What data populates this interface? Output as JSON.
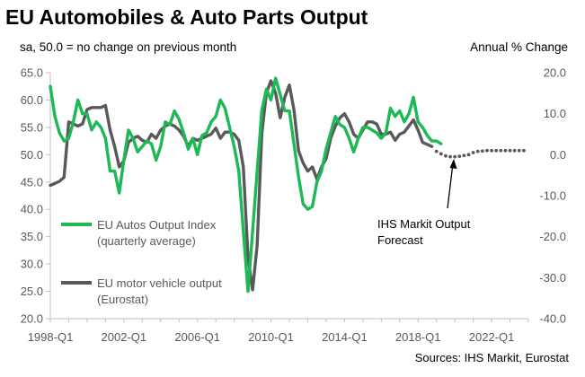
{
  "chart_data": {
    "type": "line",
    "title": "EU Automobiles & Auto Parts Output",
    "left_axis_label": "sa, 50.0 = no change on previous month",
    "right_axis_label": "Annual % Change",
    "source": "Sources: IHS Markit, Eurostat",
    "annotation": [
      "IHS Markit Output",
      "Forecast"
    ],
    "x_ticks": [
      "1998-Q1",
      "2002-Q1",
      "2006-Q1",
      "2010-Q1",
      "2014-Q1",
      "2018-Q1",
      "2022-Q1"
    ],
    "y_left": {
      "min": 20,
      "max": 65,
      "ticks": [
        "20.0",
        "25.0",
        "30.0",
        "35.0",
        "40.0",
        "45.0",
        "50.0",
        "55.0",
        "60.0",
        "65.0"
      ]
    },
    "y_right": {
      "min": -40,
      "max": 20,
      "ticks": [
        "-40.0",
        "-30.0",
        "-20.0",
        "-10.0",
        "0.0",
        "10.0",
        "20.0"
      ]
    },
    "grid": false,
    "legend_position": "bottom-left",
    "series": [
      {
        "name": "EU Autos Output Index\n(quarterly average)",
        "legend_lines": [
          "EU Autos Output Index",
          "(quarterly average)"
        ],
        "axis": "left",
        "color": "#1db954",
        "x": [
          1998.0,
          1998.25,
          1998.5,
          1998.75,
          1999.0,
          1999.25,
          1999.5,
          1999.75,
          2000.0,
          2000.25,
          2000.5,
          2000.75,
          2001.0,
          2001.25,
          2001.5,
          2001.75,
          2002.0,
          2002.25,
          2002.5,
          2002.75,
          2003.0,
          2003.25,
          2003.5,
          2003.75,
          2004.0,
          2004.25,
          2004.5,
          2004.75,
          2005.0,
          2005.25,
          2005.5,
          2005.75,
          2006.0,
          2006.25,
          2006.5,
          2006.75,
          2007.0,
          2007.25,
          2007.5,
          2007.75,
          2008.0,
          2008.25,
          2008.5,
          2008.75,
          2009.0,
          2009.25,
          2009.5,
          2009.75,
          2010.0,
          2010.25,
          2010.5,
          2010.75,
          2011.0,
          2011.25,
          2011.5,
          2011.75,
          2012.0,
          2012.25,
          2012.5,
          2012.75,
          2013.0,
          2013.25,
          2013.5,
          2013.75,
          2014.0,
          2014.25,
          2014.5,
          2014.75,
          2015.0,
          2015.25,
          2015.5,
          2015.75,
          2016.0,
          2016.25,
          2016.5,
          2016.75,
          2017.0,
          2017.25,
          2017.5,
          2017.75,
          2018.0,
          2018.25,
          2018.5,
          2018.75,
          2019.0,
          2019.25
        ],
        "values": [
          62.5,
          57.0,
          54.0,
          52.5,
          53.0,
          56.0,
          60.0,
          57.5,
          57.5,
          54.5,
          56.0,
          55.0,
          53.0,
          47.0,
          47.0,
          43.0,
          49.0,
          54.5,
          53.0,
          50.5,
          51.5,
          52.5,
          52.0,
          49.0,
          51.5,
          56.0,
          55.5,
          58.0,
          56.5,
          54.0,
          51.0,
          53.0,
          50.0,
          53.5,
          54.0,
          56.0,
          57.0,
          60.0,
          58.5,
          55.0,
          51.5,
          47.0,
          36.0,
          25.0,
          36.0,
          47.0,
          58.0,
          62.0,
          60.0,
          64.0,
          61.0,
          58.0,
          58.0,
          52.0,
          46.0,
          41.0,
          40.0,
          40.5,
          45.0,
          47.0,
          51.0,
          54.0,
          57.0,
          55.5,
          55.0,
          53.0,
          50.5,
          53.0,
          55.0,
          55.0,
          54.5,
          54.0,
          53.0,
          54.0,
          58.5,
          57.0,
          58.0,
          56.0,
          57.5,
          60.5,
          56.0,
          55.0,
          53.5,
          52.5,
          52.5,
          52.0
        ]
      },
      {
        "name": "EU motor vehicle output\n(Eurostat)",
        "legend_lines": [
          "EU motor vehicle output",
          "(Eurostat)"
        ],
        "axis": "right",
        "color": "#595959",
        "x": [
          1998.0,
          1998.25,
          1998.5,
          1998.75,
          1999.0,
          1999.25,
          1999.5,
          1999.75,
          2000.0,
          2000.25,
          2000.5,
          2000.75,
          2001.0,
          2001.25,
          2001.5,
          2001.75,
          2002.0,
          2002.25,
          2002.5,
          2002.75,
          2003.0,
          2003.25,
          2003.5,
          2003.75,
          2004.0,
          2004.25,
          2004.5,
          2004.75,
          2005.0,
          2005.25,
          2005.5,
          2005.75,
          2006.0,
          2006.25,
          2006.5,
          2006.75,
          2007.0,
          2007.25,
          2007.5,
          2007.75,
          2008.0,
          2008.25,
          2008.5,
          2008.75,
          2009.0,
          2009.25,
          2009.5,
          2009.75,
          2010.0,
          2010.25,
          2010.5,
          2010.75,
          2011.0,
          2011.25,
          2011.5,
          2011.75,
          2012.0,
          2012.25,
          2012.5,
          2012.75,
          2013.0,
          2013.25,
          2013.5,
          2013.75,
          2014.0,
          2014.25,
          2014.5,
          2014.75,
          2015.0,
          2015.25,
          2015.5,
          2015.75,
          2016.0,
          2016.25,
          2016.5,
          2016.75,
          2017.0,
          2017.25,
          2017.5,
          2017.75,
          2018.0,
          2018.25,
          2018.5,
          2018.75
        ],
        "values": [
          -7.5,
          -7.0,
          -6.5,
          -5.5,
          8.0,
          7.5,
          7.0,
          7.5,
          11.0,
          11.5,
          11.5,
          11.5,
          12.0,
          6.0,
          2.0,
          -3.0,
          -1.5,
          3.0,
          4.0,
          4.5,
          3.5,
          3.0,
          5.0,
          4.0,
          6.0,
          7.0,
          7.5,
          7.0,
          6.0,
          4.5,
          2.0,
          4.0,
          3.5,
          4.0,
          4.5,
          5.0,
          6.5,
          4.0,
          5.5,
          5.5,
          5.0,
          3.5,
          -3.0,
          -25.0,
          -33.0,
          -22.0,
          5.0,
          15.0,
          18.0,
          15.0,
          9.0,
          14.0,
          17.0,
          11.0,
          1.0,
          -2.0,
          -4.0,
          -3.0,
          -6.0,
          -3.0,
          -1.0,
          4.0,
          7.0,
          9.0,
          10.0,
          8.0,
          5.0,
          4.0,
          6.0,
          8.0,
          8.0,
          7.5,
          5.0,
          5.0,
          5.5,
          3.5,
          5.0,
          5.5,
          7.0,
          8.5,
          6.0,
          3.0,
          2.5,
          2.0
        ]
      },
      {
        "name": "IHS Markit Output Forecast",
        "axis": "right",
        "color": "#595959",
        "style": "dotted",
        "x": [
          2019.0,
          2019.25,
          2019.5,
          2019.75,
          2020.0,
          2020.25,
          2020.5,
          2020.75,
          2021.0,
          2021.25,
          2021.5,
          2021.75,
          2022.0,
          2022.25,
          2022.5,
          2022.75,
          2023.0,
          2023.25,
          2023.5,
          2023.75
        ],
        "values": [
          0.8,
          0.2,
          -0.3,
          -0.5,
          -0.5,
          -0.4,
          -0.2,
          0.0,
          0.5,
          0.8,
          0.9,
          1.0,
          1.0,
          1.0,
          1.0,
          1.0,
          1.0,
          1.0,
          1.0,
          1.0
        ]
      }
    ]
  }
}
